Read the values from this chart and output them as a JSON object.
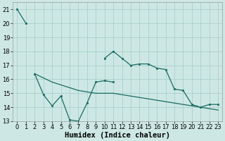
{
  "xlabel": "Humidex (Indice chaleur)",
  "background_color": "#cde8e4",
  "grid_color": "#aacfca",
  "line_color": "#1a6b63",
  "x_values": [
    0,
    1,
    2,
    3,
    4,
    5,
    6,
    7,
    8,
    9,
    10,
    11,
    12,
    13,
    14,
    15,
    16,
    17,
    18,
    19,
    20,
    21,
    22,
    23
  ],
  "series1_y": [
    21.0,
    20.0,
    null,
    null,
    null,
    null,
    null,
    null,
    null,
    null,
    17.5,
    18.0,
    17.5,
    17.0,
    17.1,
    17.1,
    16.8,
    16.7,
    15.3,
    15.2,
    14.2,
    14.0,
    14.2,
    14.2
  ],
  "series2_y": [
    null,
    null,
    16.4,
    14.9,
    14.1,
    14.8,
    13.1,
    13.0,
    14.3,
    15.8,
    15.9,
    15.8,
    null,
    null,
    null,
    null,
    null,
    null,
    null,
    null,
    null,
    null,
    null,
    null
  ],
  "trend_y": [
    null,
    null,
    16.4,
    16.1,
    15.8,
    15.6,
    15.4,
    15.2,
    15.1,
    15.0,
    15.0,
    15.0,
    14.9,
    14.8,
    14.7,
    14.6,
    14.5,
    14.4,
    14.3,
    14.2,
    14.1,
    14.0,
    13.9,
    13.8
  ],
  "ylim": [
    13,
    21.5
  ],
  "xlim": [
    -0.5,
    23.5
  ],
  "yticks": [
    13,
    14,
    15,
    16,
    17,
    18,
    19,
    20,
    21
  ],
  "xticks": [
    0,
    1,
    2,
    3,
    4,
    5,
    6,
    7,
    8,
    9,
    10,
    11,
    12,
    13,
    14,
    15,
    16,
    17,
    18,
    19,
    20,
    21,
    22,
    23
  ],
  "tick_fontsize": 6,
  "xlabel_fontsize": 7.5,
  "marker_size": 2.0,
  "line_width": 0.9
}
